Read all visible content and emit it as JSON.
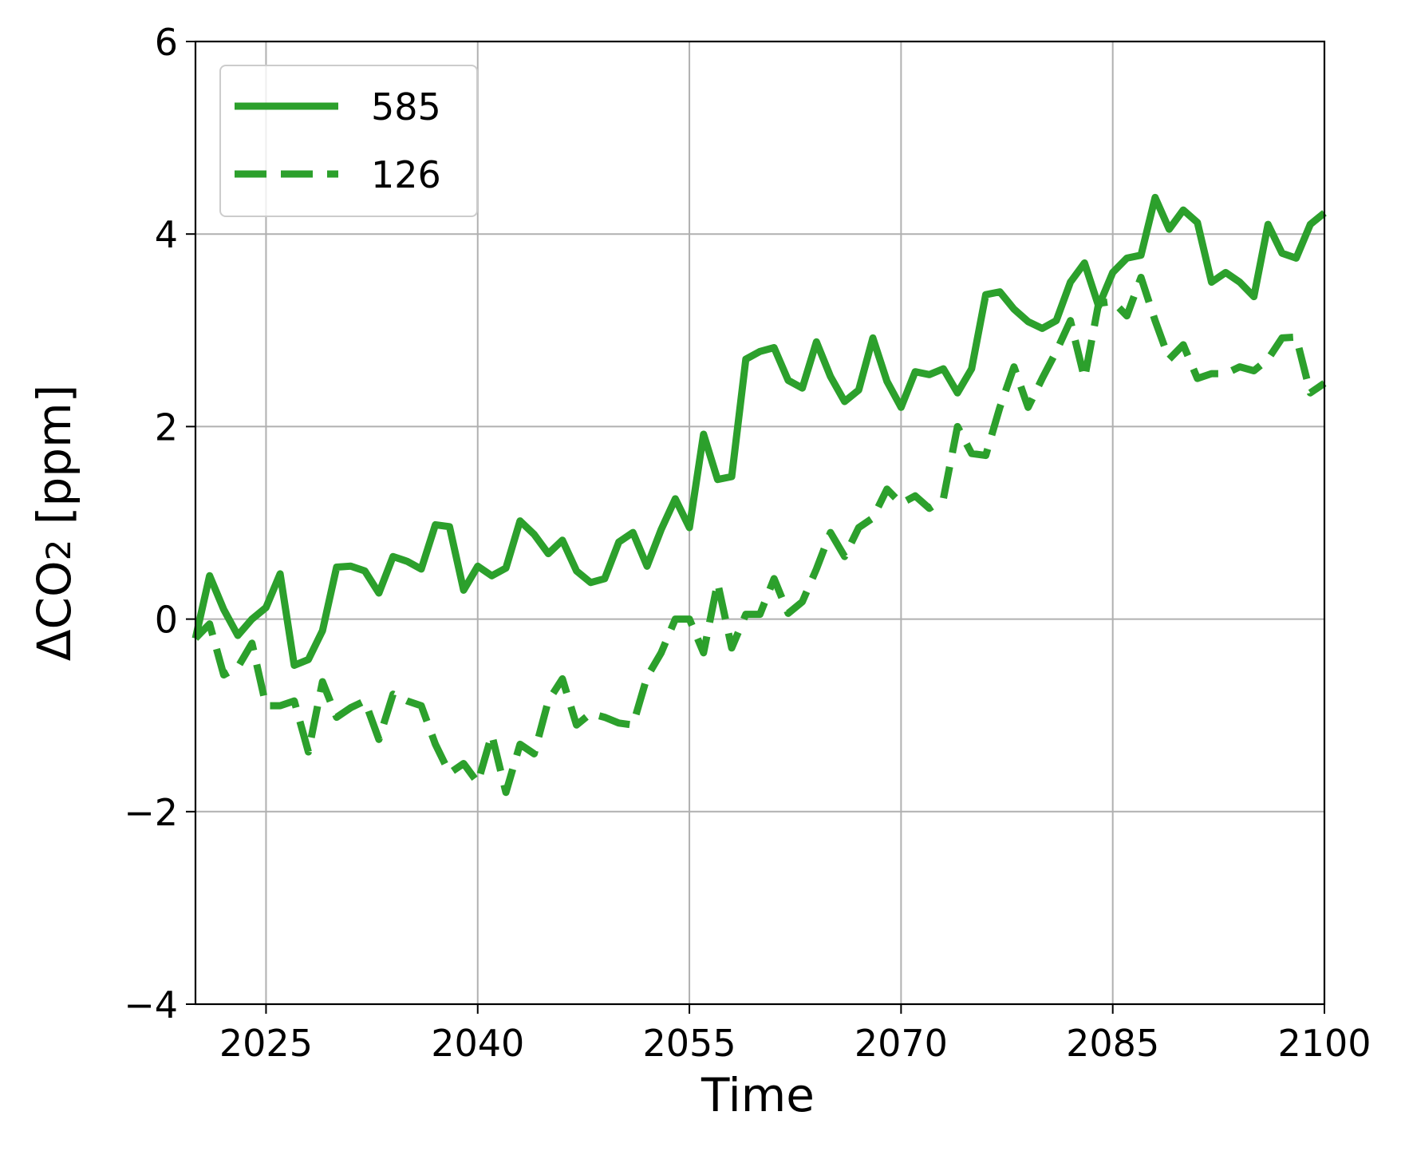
{
  "chart_data": {
    "type": "line",
    "xlabel": "Time",
    "ylabel_main": "ΔCO",
    "ylabel_sub": "2",
    "ylabel_unit": " [ppm]",
    "xlim": [
      2020,
      2100
    ],
    "ylim": [
      -4,
      6
    ],
    "xticks": [
      2025,
      2040,
      2055,
      2070,
      2085,
      2100
    ],
    "yticks": [
      -4,
      -2,
      0,
      2,
      4,
      6
    ],
    "ytick_labels": [
      "−4",
      "−2",
      "0",
      "2",
      "4",
      "6"
    ],
    "grid": true,
    "legend_position": "top-left",
    "color": "#2ca02c",
    "series": [
      {
        "name": "585",
        "style": "solid",
        "x": [
          2020,
          2021,
          2022,
          2023,
          2024,
          2025,
          2026,
          2027,
          2028,
          2029,
          2030,
          2031,
          2032,
          2033,
          2034,
          2035,
          2036,
          2037,
          2038,
          2039,
          2040,
          2041,
          2042,
          2043,
          2044,
          2045,
          2046,
          2047,
          2048,
          2049,
          2050,
          2051,
          2052,
          2053,
          2054,
          2055,
          2056,
          2057,
          2058,
          2059,
          2060,
          2061,
          2062,
          2063,
          2064,
          2065,
          2066,
          2067,
          2068,
          2069,
          2070,
          2071,
          2072,
          2073,
          2074,
          2075,
          2076,
          2077,
          2078,
          2079,
          2080,
          2081,
          2082,
          2083,
          2084,
          2085,
          2086,
          2087,
          2088,
          2089,
          2090,
          2091,
          2092,
          2093,
          2094,
          2095,
          2096,
          2097,
          2098,
          2099,
          2100
        ],
        "y": [
          -0.2,
          0.45,
          0.1,
          -0.17,
          0,
          0.12,
          0.47,
          -0.48,
          -0.42,
          -0.12,
          0.54,
          0.55,
          0.5,
          0.27,
          0.65,
          0.6,
          0.52,
          0.98,
          0.96,
          0.3,
          0.55,
          0.45,
          0.53,
          1.02,
          0.88,
          0.68,
          0.82,
          0.5,
          0.38,
          0.42,
          0.8,
          0.9,
          0.55,
          0.93,
          1.25,
          0.95,
          1.92,
          1.45,
          1.48,
          2.7,
          2.78,
          2.82,
          2.48,
          2.4,
          2.88,
          2.52,
          2.26,
          2.38,
          2.92,
          2.47,
          2.2,
          2.57,
          2.54,
          2.6,
          2.35,
          2.6,
          3.37,
          3.4,
          3.22,
          3.09,
          3.02,
          3.1,
          3.5,
          3.7,
          3.25,
          3.6,
          3.75,
          3.78,
          4.38,
          4.05,
          4.25,
          4.12,
          3.5,
          3.6,
          3.5,
          3.35,
          4.1,
          3.8,
          3.75,
          4.1,
          4.22
        ]
      },
      {
        "name": "126",
        "style": "dashed",
        "x": [
          2020,
          2021,
          2022,
          2023,
          2024,
          2025,
          2026,
          2027,
          2028,
          2029,
          2030,
          2031,
          2032,
          2033,
          2034,
          2035,
          2036,
          2037,
          2038,
          2039,
          2040,
          2041,
          2042,
          2043,
          2044,
          2045,
          2046,
          2047,
          2048,
          2049,
          2050,
          2051,
          2052,
          2053,
          2054,
          2055,
          2056,
          2057,
          2058,
          2059,
          2060,
          2061,
          2062,
          2063,
          2064,
          2065,
          2066,
          2067,
          2068,
          2069,
          2070,
          2071,
          2072,
          2073,
          2074,
          2075,
          2076,
          2077,
          2078,
          2079,
          2080,
          2081,
          2082,
          2083,
          2084,
          2085,
          2086,
          2087,
          2088,
          2089,
          2090,
          2091,
          2092,
          2093,
          2094,
          2095,
          2096,
          2097,
          2098,
          2099,
          2100
        ],
        "y": [
          -0.2,
          -0.05,
          -0.58,
          -0.5,
          -0.25,
          -0.9,
          -0.9,
          -0.85,
          -1.38,
          -0.65,
          -1.02,
          -0.92,
          -0.85,
          -1.25,
          -0.78,
          -0.85,
          -0.9,
          -1.3,
          -1.6,
          -1.5,
          -1.7,
          -1.2,
          -1.8,
          -1.3,
          -1.4,
          -0.85,
          -0.62,
          -1.1,
          -0.98,
          -1.02,
          -1.08,
          -1.1,
          -0.6,
          -0.35,
          0.0,
          0.0,
          -0.35,
          0.38,
          -0.3,
          0.05,
          0.05,
          0.42,
          0.06,
          0.18,
          0.52,
          0.9,
          0.65,
          0.95,
          1.05,
          1.35,
          1.2,
          1.28,
          1.15,
          1.25,
          2.0,
          1.72,
          1.7,
          2.2,
          2.62,
          2.2,
          2.5,
          2.78,
          3.1,
          2.5,
          3.28,
          3.3,
          3.15,
          3.55,
          3.1,
          2.7,
          2.85,
          2.5,
          2.55,
          2.55,
          2.62,
          2.58,
          2.7,
          2.92,
          2.93,
          2.35,
          2.45
        ]
      }
    ]
  }
}
